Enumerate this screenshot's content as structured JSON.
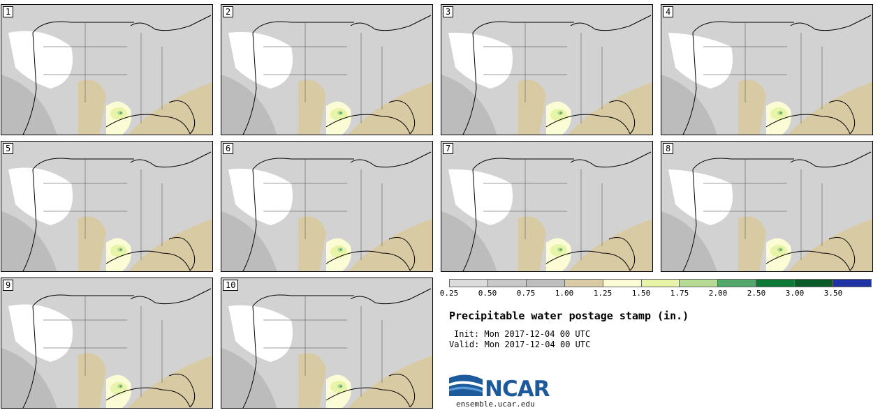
{
  "map": {
    "title": "Precipitable water postage stamp (in.)",
    "init_label": "Init:",
    "init_value": "Mon 2017-12-04 00 UTC",
    "valid_label": "Valid:",
    "valid_value": "Mon 2017-12-04 00 UTC",
    "members": [
      {
        "label": "1"
      },
      {
        "label": "2"
      },
      {
        "label": "3"
      },
      {
        "label": "4"
      },
      {
        "label": "5"
      },
      {
        "label": "6"
      },
      {
        "label": "7"
      },
      {
        "label": "8"
      },
      {
        "label": "9"
      },
      {
        "label": "10"
      }
    ],
    "colorbar": {
      "tick_labels": [
        "0.25",
        "0.50",
        "0.75",
        "1.00",
        "1.25",
        "1.50",
        "1.75",
        "2.00",
        "2.50",
        "3.00",
        "3.50"
      ],
      "colors": [
        "#dcdcdc",
        "#c8c8c8",
        "#bebebe",
        "#d8cba4",
        "#fbfcd5",
        "#e8f5a8",
        "#b6d994",
        "#52a86a",
        "#0e7a37",
        "#0a5a2a",
        "#1f33a7"
      ]
    },
    "field_colors": {
      "background": "#d2d2d2",
      "dry": "#ffffff",
      "light": "#e4e4e4",
      "dark": "#bcbcbc",
      "tan": "#d8cba4",
      "pale_yellow": "#fbfcd5",
      "yellow_green": "#e8f5a8",
      "green": "#b6d994",
      "dark_green": "#52a86a"
    }
  },
  "logo": {
    "text": "NCAR",
    "website": "ensemble.ucar.edu",
    "colors": {
      "blue": "#1d5a9c",
      "light_blue": "#5b9bd5"
    }
  }
}
